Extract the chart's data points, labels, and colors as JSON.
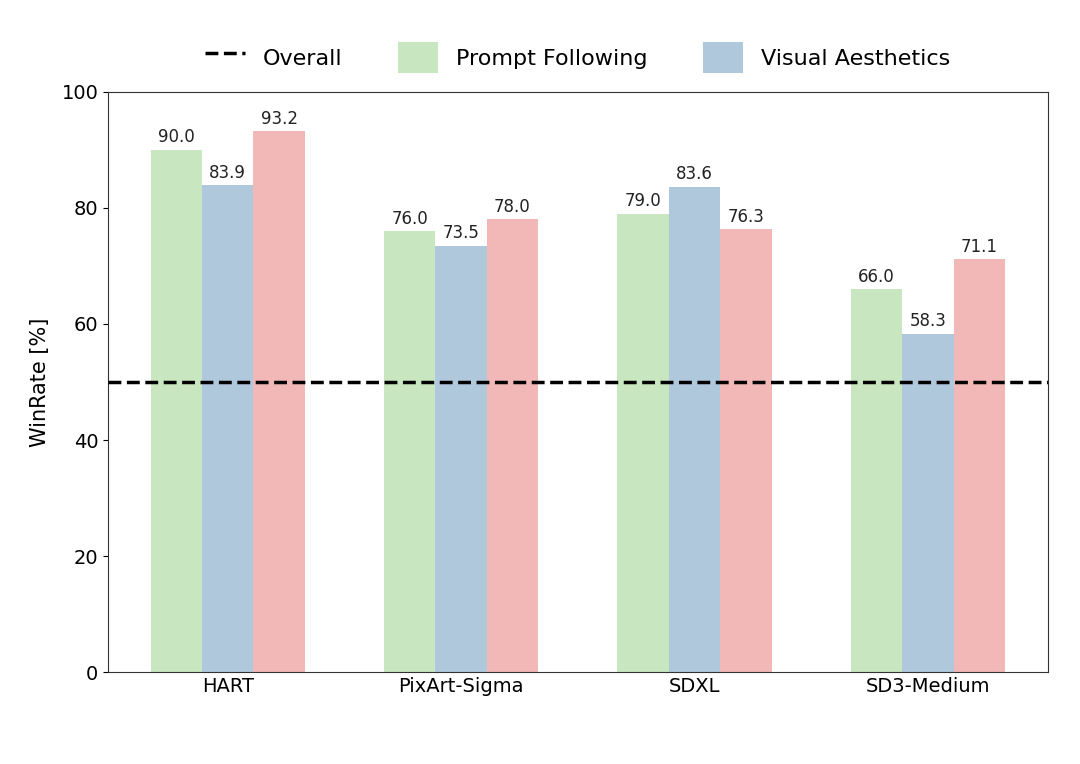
{
  "categories": [
    "HART",
    "PixArt-Sigma",
    "SDXL",
    "SD3-Medium"
  ],
  "series": {
    "Overall": [
      90.0,
      76.0,
      79.0,
      66.0
    ],
    "Prompt Following": [
      83.9,
      73.5,
      83.6,
      58.3
    ],
    "Visual Aesthetics": [
      93.2,
      78.0,
      76.3,
      71.1
    ]
  },
  "colors": {
    "Overall": "#c8e6c0",
    "Prompt Following": "#b0c8dc",
    "Visual Aesthetics": "#f2b8b8"
  },
  "ylabel": "WinRate [%]",
  "ylim": [
    0,
    100
  ],
  "yticks": [
    0,
    20,
    40,
    60,
    80,
    100
  ],
  "dashed_line_y": 50,
  "legend_labels": [
    "Overall",
    "Prompt Following",
    "Visual Aesthetics"
  ],
  "bar_width": 0.22,
  "label_fontsize": 12,
  "axis_fontsize": 15,
  "tick_fontsize": 14,
  "legend_fontsize": 16,
  "background_color": "#ffffff",
  "figure_bg": "#ffffff"
}
